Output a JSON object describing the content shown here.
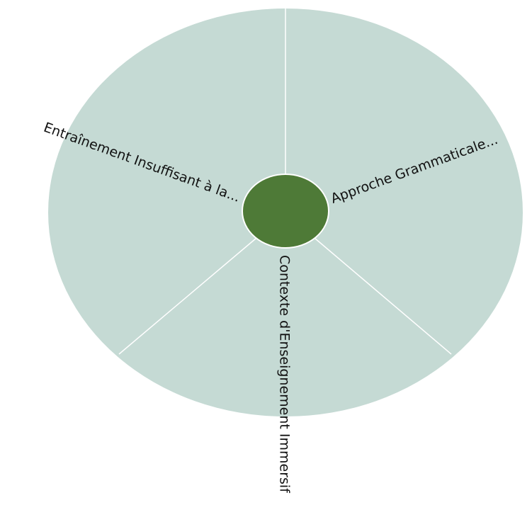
{
  "nodes": [
    {
      "label": "Entraînement Insuffisant à la..."
    },
    {
      "label": "Approche Grammaticale..."
    },
    {
      "label": "Contexte d'Enseignement Immersif"
    }
  ]
}
